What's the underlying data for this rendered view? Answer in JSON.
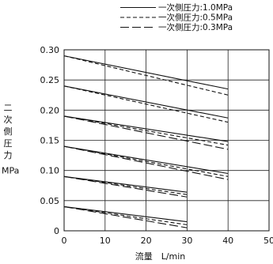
{
  "chart_data": {
    "type": "line",
    "xlabel": "流量　L/min",
    "ylabel_chars": [
      "二",
      "次",
      "側",
      "圧",
      "力"
    ],
    "yunit": "MPa",
    "xlim": [
      0,
      50
    ],
    "ylim": [
      0,
      0.3
    ],
    "xticks": [
      0,
      10,
      20,
      30,
      40,
      50
    ],
    "yticks": [
      "0",
      "0.05",
      "0.10",
      "0.15",
      "0.20",
      "0.25",
      "0.30"
    ],
    "grid": true,
    "legend_position": "top-right",
    "series": [
      {
        "name": "一次側圧力:1.0MPa",
        "style": "solid"
      },
      {
        "name": "一次側圧力:0.5MPa",
        "style": "dashed"
      },
      {
        "name": "一次側圧力:0.3MPa",
        "style": "longdash"
      }
    ],
    "curves": [
      {
        "set": 0.29,
        "style": "solid",
        "x": [
          0,
          40
        ],
        "y": [
          0.29,
          0.235
        ]
      },
      {
        "set": 0.29,
        "style": "dashed",
        "x": [
          0,
          40
        ],
        "y": [
          0.29,
          0.225
        ]
      },
      {
        "set": 0.24,
        "style": "solid",
        "x": [
          0,
          40
        ],
        "y": [
          0.24,
          0.187
        ]
      },
      {
        "set": 0.24,
        "style": "dashed",
        "x": [
          0,
          40
        ],
        "y": [
          0.24,
          0.18
        ]
      },
      {
        "set": 0.19,
        "style": "solid",
        "x": [
          0,
          40
        ],
        "y": [
          0.19,
          0.148
        ]
      },
      {
        "set": 0.19,
        "style": "dashed",
        "x": [
          0,
          40
        ],
        "y": [
          0.19,
          0.142
        ]
      },
      {
        "set": 0.19,
        "style": "longdash",
        "x": [
          0,
          40
        ],
        "y": [
          0.19,
          0.135
        ]
      },
      {
        "set": 0.14,
        "style": "solid",
        "x": [
          0,
          40
        ],
        "y": [
          0.14,
          0.095
        ]
      },
      {
        "set": 0.14,
        "style": "dashed",
        "x": [
          0,
          40
        ],
        "y": [
          0.14,
          0.09
        ]
      },
      {
        "set": 0.14,
        "style": "longdash",
        "x": [
          0,
          40
        ],
        "y": [
          0.14,
          0.085
        ]
      },
      {
        "set": 0.09,
        "style": "solid",
        "x": [
          0,
          30
        ],
        "y": [
          0.09,
          0.064
        ]
      },
      {
        "set": 0.09,
        "style": "dashed",
        "x": [
          0,
          30
        ],
        "y": [
          0.09,
          0.06
        ]
      },
      {
        "set": 0.09,
        "style": "longdash",
        "x": [
          0,
          30
        ],
        "y": [
          0.09,
          0.056
        ]
      },
      {
        "set": 0.04,
        "style": "solid",
        "x": [
          0,
          30
        ],
        "y": [
          0.04,
          0.015
        ]
      },
      {
        "set": 0.04,
        "style": "dashed",
        "x": [
          0,
          30
        ],
        "y": [
          0.04,
          0.01
        ]
      },
      {
        "set": 0.04,
        "style": "longdash",
        "x": [
          0,
          30
        ],
        "y": [
          0.04,
          0.005
        ]
      }
    ]
  }
}
